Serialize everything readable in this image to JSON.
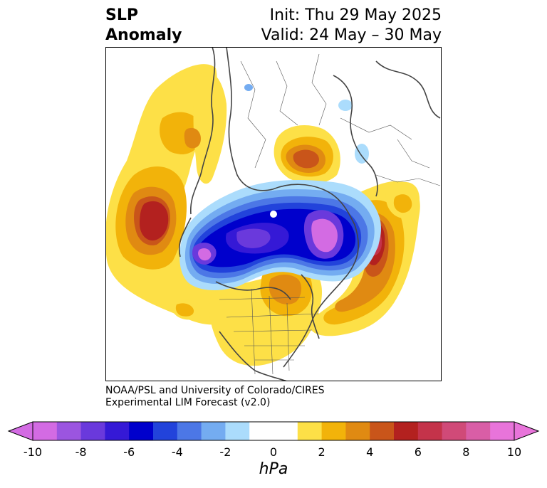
{
  "header": {
    "title_line1": "SLP",
    "title_line2": "Anomaly",
    "init_text": "Init: Thu 29 May 2025",
    "valid_text": "Valid: 24 May – 30 May"
  },
  "credit": {
    "line1": "NOAA/PSL and University of Colorado/CIRES",
    "line2": "Experimental LIM Forecast (v2.0)"
  },
  "colorbar": {
    "unit_label": "hPa",
    "tick_labels": [
      "-10",
      "-8",
      "-6",
      "-4",
      "-2",
      "0",
      "2",
      "4",
      "6",
      "8",
      "10"
    ],
    "colors": [
      "#d36be3",
      "#9b55e0",
      "#6a39dc",
      "#3519d6",
      "#0000cc",
      "#2243db",
      "#4c77e6",
      "#74acf1",
      "#abdcfc",
      "#ffffff",
      "#ffffff",
      "#fde047",
      "#f2b30a",
      "#e08a12",
      "#c9551a",
      "#b3211f",
      "#c4334a",
      "#d04a78",
      "#d95ea6",
      "#e874da"
    ]
  },
  "map_colors": {
    "neg_light": "#abdcfc",
    "neg_mid": "#74acf1",
    "neg_blue": "#4c77e6",
    "neg_deep": "#0000cc",
    "neg_purple": "#6a39dc",
    "neg_magenta": "#d36be3",
    "pos_yellow": "#fde047",
    "pos_gold": "#f2b30a",
    "pos_orange": "#e08a12",
    "pos_red_orange": "#c9551a",
    "pos_red": "#b3211f",
    "pos_crimson": "#c4334a",
    "pos_pink": "#d95ea6"
  }
}
